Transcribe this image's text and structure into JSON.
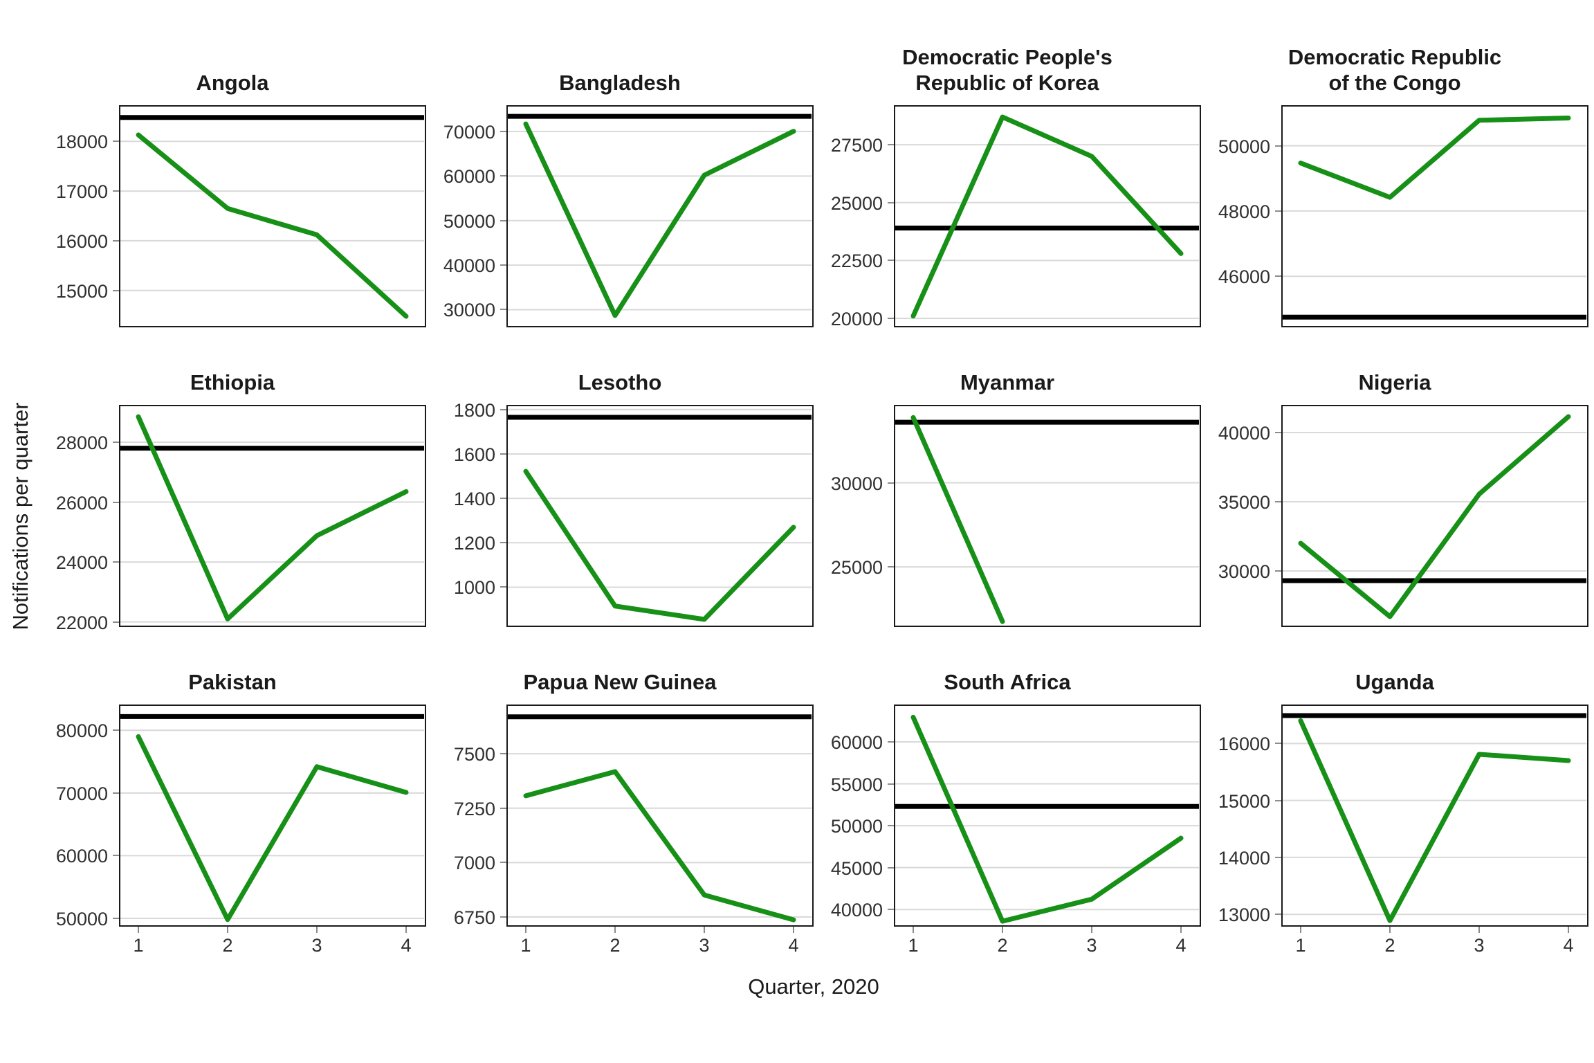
{
  "figure": {
    "x_axis_label": "Quarter, 2020",
    "y_axis_label": "Notifications per quarter",
    "x_tick_labels": [
      "1",
      "2",
      "3",
      "4"
    ],
    "layout": "4x3 facet grid, free y scales, major horizontal gridlines, no legend"
  },
  "style": {
    "line_color": "#169016",
    "reference_line_color": "#000000",
    "gridline_color": "#d9d9d9",
    "panel_border_color": "#1a1a1a",
    "tick_color": "#8c8c8c",
    "text_color": "#1a1a1a"
  },
  "chart_data": [
    {
      "type": "line",
      "id": "angola",
      "title": "Angola",
      "x": [
        1,
        2,
        3,
        4
      ],
      "values": [
        18130,
        16650,
        16120,
        14480
      ],
      "reference_line": 18480,
      "yticks": [
        15000,
        16000,
        17000,
        18000
      ],
      "ylim": [
        14300,
        18700
      ]
    },
    {
      "type": "line",
      "id": "bangladesh",
      "title": "Bangladesh",
      "x": [
        1,
        2,
        3,
        4
      ],
      "values": [
        71700,
        28700,
        60200,
        70050
      ],
      "reference_line": 73400,
      "yticks": [
        30000,
        40000,
        50000,
        60000,
        70000
      ],
      "ylim": [
        26500,
        75600
      ]
    },
    {
      "type": "line",
      "id": "dprk",
      "title": "Democratic People's\nRepublic of Korea",
      "x": [
        1,
        2,
        3,
        4
      ],
      "values": [
        20100,
        28700,
        27000,
        22800
      ],
      "reference_line": 23900,
      "yticks": [
        20000,
        22500,
        25000,
        27500
      ],
      "ylim": [
        19700,
        29150
      ]
    },
    {
      "type": "line",
      "id": "drc",
      "title": "Democratic Republic\nof the Congo",
      "x": [
        1,
        2,
        3,
        4
      ],
      "values": [
        49470,
        48420,
        50780,
        50850
      ],
      "reference_line": 44750,
      "yticks": [
        46000,
        48000,
        50000
      ],
      "ylim": [
        44500,
        51200
      ]
    },
    {
      "type": "line",
      "id": "ethiopia",
      "title": "Ethiopia",
      "x": [
        1,
        2,
        3,
        4
      ],
      "values": [
        28850,
        22100,
        24880,
        26350
      ],
      "reference_line": 27800,
      "yticks": [
        22000,
        24000,
        26000,
        28000
      ],
      "ylim": [
        21900,
        29200
      ]
    },
    {
      "type": "line",
      "id": "lesotho",
      "title": "Lesotho",
      "x": [
        1,
        2,
        3,
        4
      ],
      "values": [
        1522,
        915,
        855,
        1270
      ],
      "reference_line": 1765,
      "yticks": [
        1000,
        1200,
        1400,
        1600,
        1800
      ],
      "ylim": [
        830,
        1815
      ]
    },
    {
      "type": "line",
      "id": "myanmar",
      "title": "Myanmar",
      "x": [
        1,
        2,
        3,
        4
      ],
      "values": [
        33880,
        21750,
        null,
        null
      ],
      "reference_line": 33600,
      "yticks": [
        25000,
        30000
      ],
      "ylim": [
        21550,
        34550
      ]
    },
    {
      "type": "line",
      "id": "nigeria",
      "title": "Nigeria",
      "x": [
        1,
        2,
        3,
        4
      ],
      "values": [
        32000,
        26700,
        35550,
        41150
      ],
      "reference_line": 29300,
      "yticks": [
        30000,
        35000,
        40000
      ],
      "ylim": [
        26100,
        41900
      ]
    },
    {
      "type": "line",
      "id": "pakistan",
      "title": "Pakistan",
      "x": [
        1,
        2,
        3,
        4
      ],
      "values": [
        79000,
        49800,
        74200,
        70100
      ],
      "reference_line": 82200,
      "yticks": [
        50000,
        60000,
        70000,
        80000
      ],
      "ylim": [
        49000,
        83900
      ]
    },
    {
      "type": "line",
      "id": "papua-new-guinea",
      "title": "Papua New Guinea",
      "x": [
        1,
        2,
        3,
        4
      ],
      "values": [
        7307,
        7418,
        6851,
        6737
      ],
      "reference_line": 7670,
      "yticks": [
        6750,
        7000,
        7250,
        7500
      ],
      "ylim": [
        6715,
        7720
      ]
    },
    {
      "type": "line",
      "id": "south-africa",
      "title": "South Africa",
      "x": [
        1,
        2,
        3,
        4
      ],
      "values": [
        62950,
        38600,
        41230,
        48520
      ],
      "reference_line": 52300,
      "yticks": [
        40000,
        45000,
        50000,
        55000,
        60000
      ],
      "ylim": [
        38200,
        64300
      ]
    },
    {
      "type": "line",
      "id": "uganda",
      "title": "Uganda",
      "x": [
        1,
        2,
        3,
        4
      ],
      "values": [
        16400,
        12890,
        15810,
        15700
      ],
      "reference_line": 16490,
      "yticks": [
        13000,
        14000,
        15000,
        16000
      ],
      "ylim": [
        12820,
        16660
      ]
    }
  ]
}
